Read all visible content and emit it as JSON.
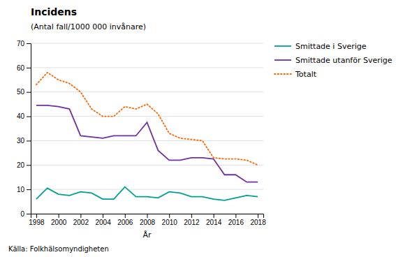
{
  "chart_data": {
    "type": "line",
    "title": "Incidens",
    "ylabel": "(Antal fall/1000 000 invånare)",
    "xlabel": "År",
    "annotations": [
      "Källa: Folkhälsomyndigheten"
    ],
    "x": [
      1998,
      1999,
      2000,
      2001,
      2002,
      2003,
      2004,
      2005,
      2006,
      2007,
      2008,
      2009,
      2010,
      2011,
      2012,
      2013,
      2014,
      2015,
      2016,
      2017,
      2018
    ],
    "series": [
      {
        "name": "Smittade i Sverige",
        "color": "#00a090",
        "line_style": "solid",
        "values": [
          6,
          10.5,
          8,
          7.5,
          9,
          8.5,
          6,
          6,
          11,
          7,
          7,
          6.5,
          9,
          8.5,
          7,
          7,
          6,
          5.5,
          6.5,
          7.5,
          7
        ]
      },
      {
        "name": "Smittade utanför Sverige",
        "color": "#7030a0",
        "line_style": "solid",
        "values": [
          44.5,
          44.5,
          44,
          43,
          32,
          31.5,
          31,
          32,
          32,
          32,
          37.5,
          26,
          22,
          22,
          23,
          23,
          22.5,
          16,
          16,
          13,
          13
        ]
      },
      {
        "name": "Totalt",
        "color": "#ff6600",
        "line_style": "dotted",
        "values": [
          53,
          58,
          55,
          53.5,
          50,
          43,
          40,
          40,
          44,
          43,
          45,
          41,
          33,
          31,
          30.5,
          30,
          23,
          22.5,
          22.5,
          22,
          20
        ]
      }
    ],
    "xlim": [
      1997.5,
      2018.5
    ],
    "xticks": [
      1998,
      2000,
      2002,
      2004,
      2006,
      2008,
      2010,
      2012,
      2014,
      2016,
      2018
    ],
    "ylim": [
      0,
      70
    ],
    "yticks": [
      0,
      10,
      20,
      30,
      40,
      50,
      60,
      70
    ],
    "grid": "y",
    "legend": "right"
  }
}
